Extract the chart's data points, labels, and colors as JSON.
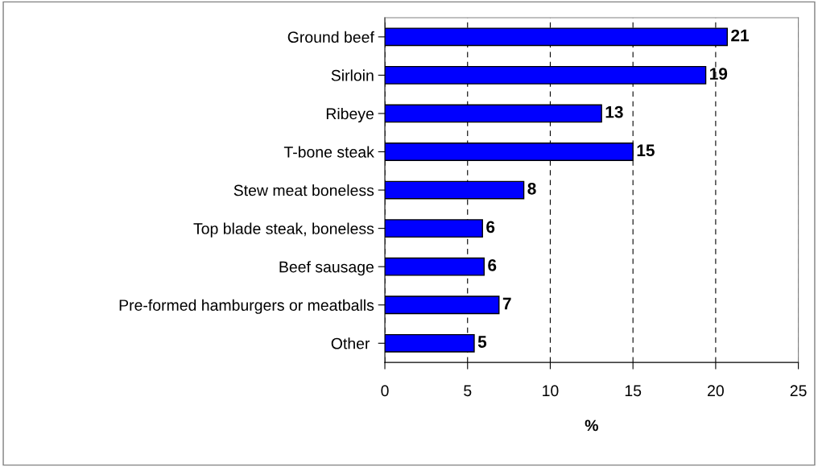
{
  "chart_data": {
    "type": "bar",
    "orientation": "horizontal",
    "xlabel": "%",
    "categories": [
      "Ground beef",
      "Sirloin",
      "Ribeye",
      "T-bone steak",
      "Stew meat boneless",
      "Top blade steak, boneless",
      "Beef sausage",
      "Pre-formed hamburgers or meatballs",
      "Other "
    ],
    "values": [
      20.7,
      19.4,
      13.1,
      15.0,
      8.4,
      5.9,
      6.0,
      6.9,
      5.4
    ],
    "value_labels": [
      "21",
      "19",
      "13",
      "15",
      "8",
      "6",
      "6",
      "7",
      "5"
    ],
    "color": "#0000ff",
    "xlim": [
      0,
      25
    ],
    "xticks": [
      0,
      5,
      10,
      15,
      20,
      25
    ],
    "grid": "x"
  }
}
